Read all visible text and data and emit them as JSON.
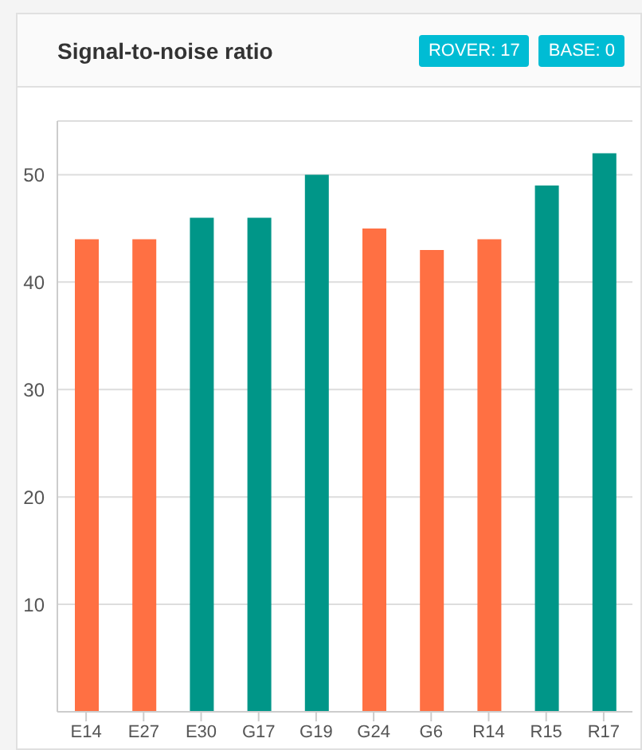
{
  "chart_data": {
    "type": "bar",
    "title": "Signal-to-noise ratio",
    "annotations": [
      "ROVER: 17",
      "BASE: 0"
    ],
    "categories": [
      "E14",
      "E27",
      "E30",
      "G17",
      "G19",
      "G24",
      "G6",
      "R14",
      "R15",
      "R17"
    ],
    "values": [
      44,
      44,
      46,
      46,
      50,
      45,
      43,
      44,
      49,
      52
    ],
    "colors": [
      "#ff7043",
      "#ff7043",
      "#009688",
      "#009688",
      "#009688",
      "#ff7043",
      "#ff7043",
      "#ff7043",
      "#009688",
      "#009688"
    ],
    "ylim": [
      0,
      55
    ],
    "yticks": [
      10,
      20,
      30,
      40,
      50
    ],
    "grid": "y"
  }
}
